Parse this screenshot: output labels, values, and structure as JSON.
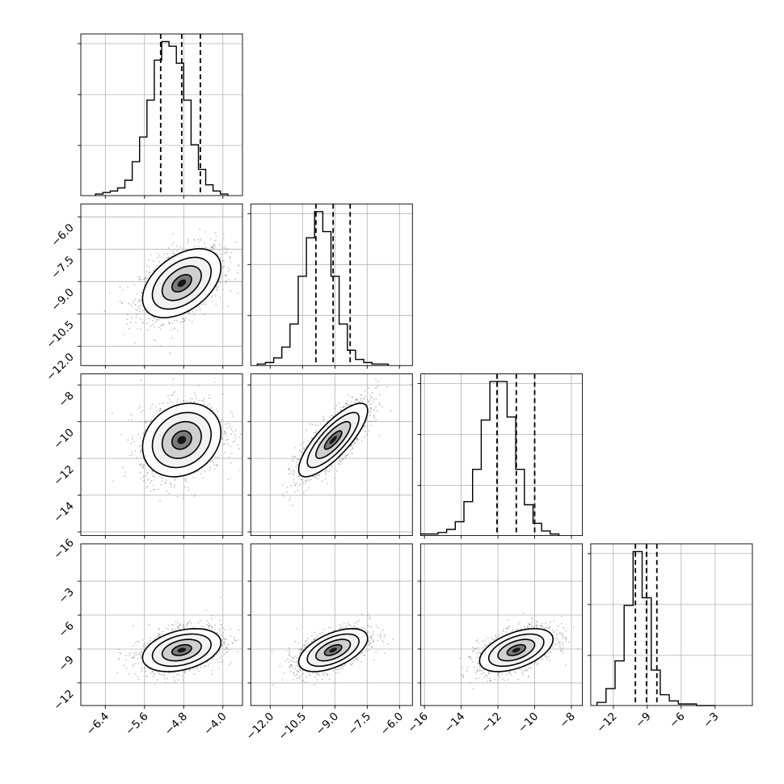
{
  "chart_data": {
    "type": "corner",
    "n_params": 4,
    "axis_ranges": [
      [
        -6.9,
        -3.6
      ],
      [
        -12.9,
        -5.4
      ],
      [
        -16.2,
        -7.4
      ],
      [
        -14.0,
        0.3
      ]
    ],
    "tick_values": [
      [
        -6.4,
        -5.6,
        -4.8,
        -4.0
      ],
      [
        -12.0,
        -10.5,
        -9.0,
        -7.5,
        -6.0
      ],
      [
        -16,
        -14,
        -12,
        -10,
        -8
      ],
      [
        -12,
        -9,
        -6,
        -3
      ]
    ],
    "tick_labels": [
      [
        "−6.4",
        "−5.6",
        "−4.8",
        "−4.0"
      ],
      [
        "−12.0",
        "−10.5",
        "−9.0",
        "−7.5",
        "−6.0"
      ],
      [
        "−16",
        "−14",
        "−12",
        "−10",
        "−8"
      ],
      [
        "−12",
        "−9",
        "−6",
        "−3"
      ]
    ],
    "grid": true,
    "diagonal": [
      {
        "param": 0,
        "bin_start": -6.6,
        "bin_width": 0.15,
        "counts": [
          1,
          2,
          3,
          5,
          10,
          22,
          38,
          62,
          88,
          100,
          97,
          86,
          62,
          33,
          17,
          7,
          3,
          1
        ],
        "quantiles": [
          -5.27,
          -4.84,
          -4.46
        ]
      },
      {
        "param": 1,
        "bin_start": -12.6,
        "bin_width": 0.38,
        "counts": [
          1,
          2,
          5,
          12,
          27,
          58,
          83,
          100,
          87,
          58,
          27,
          10,
          4,
          2,
          1,
          1
        ],
        "quantiles": [
          -9.88,
          -9.08,
          -8.29
        ]
      },
      {
        "param": 2,
        "bin_start": -16.2,
        "bin_width": 0.47,
        "counts": [
          1,
          1,
          2,
          4,
          9,
          22,
          43,
          75,
          100,
          100,
          77,
          43,
          20,
          8,
          3,
          1
        ],
        "quantiles": [
          -12.05,
          -11.0,
          -10.0
        ]
      },
      {
        "param": 3,
        "bin_start": -13.45,
        "bin_width": 0.8,
        "counts": [
          2,
          11,
          29,
          65,
          100,
          70,
          23,
          7,
          3,
          1,
          1,
          0,
          0
        ],
        "quantiles": [
          -10.05,
          -9.07,
          -8.15
        ]
      }
    ],
    "pairs": [
      {
        "x": 0,
        "y": 1,
        "mean": [
          -4.84,
          -9.08
        ],
        "sd": [
          0.4,
          0.8
        ],
        "corr": 0.45
      },
      {
        "x": 0,
        "y": 2,
        "mean": [
          -4.84,
          -11.0
        ],
        "sd": [
          0.4,
          1.0
        ],
        "corr": 0.2
      },
      {
        "x": 1,
        "y": 2,
        "mean": [
          -9.08,
          -11.0
        ],
        "sd": [
          0.8,
          1.0
        ],
        "corr": 0.8
      },
      {
        "x": 0,
        "y": 3,
        "mean": [
          -4.84,
          -9.1
        ],
        "sd": [
          0.4,
          0.95
        ],
        "corr": 0.35
      },
      {
        "x": 1,
        "y": 3,
        "mean": [
          -9.08,
          -9.1
        ],
        "sd": [
          0.8,
          0.95
        ],
        "corr": 0.55
      },
      {
        "x": 2,
        "y": 3,
        "mean": [
          -11.0,
          -9.1
        ],
        "sd": [
          1.0,
          0.95
        ],
        "corr": 0.5
      }
    ],
    "contour_levels_sigma": [
      0.5,
      1.0,
      1.5,
      2.0
    ]
  }
}
